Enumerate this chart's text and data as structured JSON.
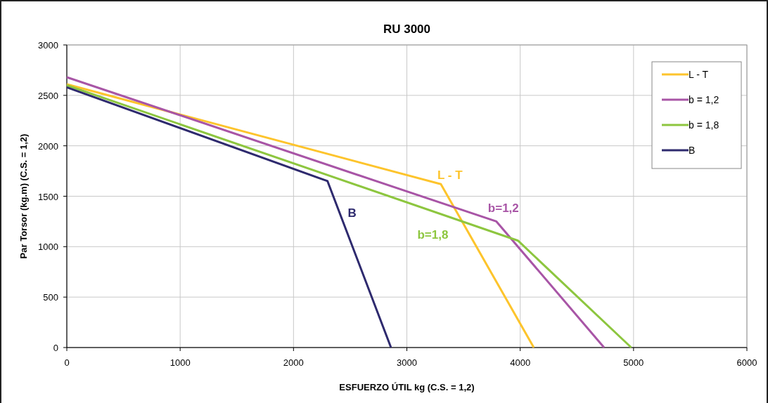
{
  "chart_data": {
    "type": "line",
    "title": "RU 3000",
    "xlabel": "ESFUERZO ÚTIL kg (C.S. = 1,2)",
    "ylabel": "Par Torsor (kg.m) (C.S. = 1,2)",
    "xlim": [
      0,
      6000
    ],
    "xticks": [
      0,
      1000,
      2000,
      3000,
      4000,
      5000,
      6000
    ],
    "ylim": [
      0,
      3000
    ],
    "yticks": [
      0,
      500,
      1000,
      1500,
      2000,
      2500,
      3000
    ],
    "grid": true,
    "legend": "top right",
    "marker": "none",
    "line_style": "solid",
    "series": [
      {
        "name": "L - T",
        "color": "#fdc42c",
        "x": [
          0,
          3300,
          4120
        ],
        "values": [
          2610,
          1620,
          0
        ]
      },
      {
        "name": "b = 1,2",
        "color": "#a855a6",
        "x": [
          0,
          3790,
          4740
        ],
        "values": [
          2680,
          1250,
          0
        ]
      },
      {
        "name": "b = 1,8",
        "color": "#8dc63f",
        "x": [
          0,
          3980,
          4980
        ],
        "values": [
          2600,
          1060,
          0
        ]
      },
      {
        "name": "B",
        "color": "#2e2a6e",
        "x": [
          0,
          2300,
          2860
        ],
        "values": [
          2580,
          1650,
          0
        ]
      }
    ],
    "annotations": [
      "L - T",
      "b=1,2",
      "b=1,8",
      "B"
    ]
  }
}
